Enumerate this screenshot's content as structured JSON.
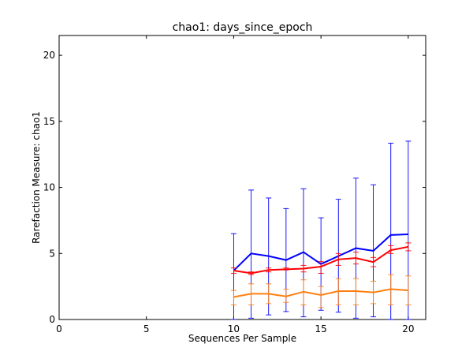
{
  "chart_data": {
    "type": "line",
    "title": "chao1: days_since_epoch",
    "xlabel": "Sequences Per Sample",
    "ylabel": "Rarefaction Measure: chao1",
    "xlim": [
      0,
      21
    ],
    "ylim": [
      0,
      21.5
    ],
    "xticks": [
      0,
      5,
      10,
      15,
      20
    ],
    "yticks": [
      0,
      5,
      10,
      15,
      20
    ],
    "grid": false,
    "legend": "none",
    "x": [
      10,
      11,
      12,
      13,
      14,
      15,
      16,
      17,
      18,
      19,
      20
    ],
    "series": [
      {
        "color": "#0000ff",
        "values": [
          3.7,
          5.0,
          4.8,
          4.5,
          5.1,
          4.2,
          4.8,
          5.4,
          5.2,
          6.4,
          6.45
        ],
        "err_low": [
          0.0,
          0.1,
          0.35,
          0.6,
          0.2,
          0.7,
          0.55,
          0.1,
          0.2,
          0.0,
          0.0
        ],
        "err_high": [
          6.5,
          9.8,
          9.2,
          8.4,
          9.9,
          7.7,
          9.1,
          10.7,
          10.2,
          13.35,
          13.5
        ]
      },
      {
        "color": "#ff0000",
        "values": [
          3.7,
          3.5,
          3.75,
          3.8,
          3.85,
          4.0,
          4.55,
          4.65,
          4.35,
          5.25,
          5.5
        ],
        "err_low": [
          3.5,
          3.4,
          3.6,
          3.75,
          3.6,
          3.5,
          4.1,
          4.2,
          4.0,
          5.0,
          5.2
        ],
        "err_high": [
          3.9,
          3.6,
          3.9,
          3.9,
          4.1,
          4.4,
          5.0,
          5.1,
          4.7,
          5.6,
          5.8
        ]
      },
      {
        "color": "#ff7f0e",
        "values": [
          1.7,
          1.95,
          1.95,
          1.75,
          2.1,
          1.85,
          2.15,
          2.15,
          2.05,
          2.3,
          2.2
        ],
        "err_low": [
          1.1,
          1.1,
          1.2,
          1.3,
          1.1,
          0.9,
          1.1,
          1.1,
          1.2,
          1.1,
          1.1
        ],
        "err_high": [
          2.2,
          2.7,
          2.7,
          2.3,
          3.0,
          2.5,
          3.1,
          3.1,
          2.9,
          3.4,
          3.3
        ]
      }
    ]
  }
}
